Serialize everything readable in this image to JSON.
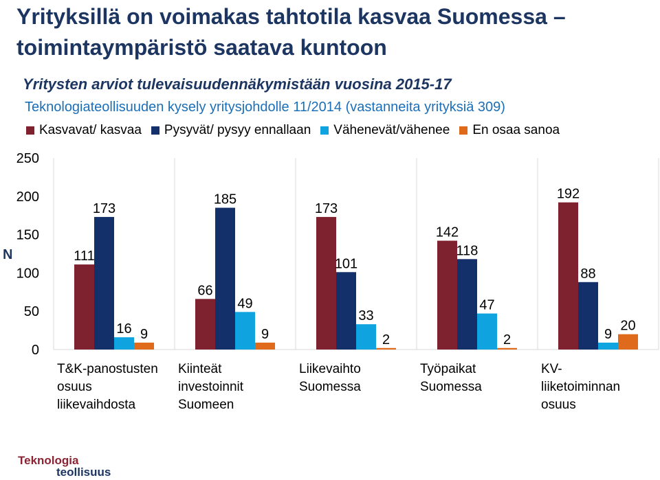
{
  "slide": {
    "title": "Yrityksillä on voimakas tahtotila kasvaa Suomessa – toimintaympäristö saatava kuntoon",
    "logo_line1": "Teknologia",
    "logo_line2": "teollisuus"
  },
  "chart_data": {
    "type": "bar",
    "title": "Yritysten arviot tulevaisuudennäkymistään vuosina 2015-17",
    "subtitle": "Teknologiateollisuuden kysely yritysjohdolle 11/2014 (vastanneita yrityksiä 309)",
    "ylabel": "N",
    "ylim": [
      0,
      250
    ],
    "yticks": [
      0,
      50,
      100,
      150,
      200,
      250
    ],
    "grid": "vertical separators between categories",
    "legend_position": "top",
    "categories": [
      [
        "T&K-panostusten",
        "osuus",
        "liikevaihdosta"
      ],
      [
        "Kiinteät",
        "investoinnit",
        "Suomeen"
      ],
      [
        "Liikevaihto",
        "Suomessa"
      ],
      [
        "Työpaikat",
        "Suomessa"
      ],
      [
        "KV-",
        "liiketoiminnan",
        "osuus"
      ]
    ],
    "series": [
      {
        "name": "Kasvavat/ kasvaa",
        "color": "#7f2230",
        "values": [
          111,
          66,
          173,
          142,
          192
        ]
      },
      {
        "name": "Pysyvät/ pysyy ennallaan",
        "color": "#14306b",
        "values": [
          173,
          185,
          101,
          118,
          88
        ]
      },
      {
        "name": "Vähenevät/vähenee",
        "color": "#0fa3e0",
        "values": [
          16,
          49,
          33,
          47,
          9
        ]
      },
      {
        "name": "En osaa sanoa",
        "color": "#e06a1b",
        "values": [
          9,
          9,
          2,
          2,
          20
        ]
      }
    ]
  }
}
